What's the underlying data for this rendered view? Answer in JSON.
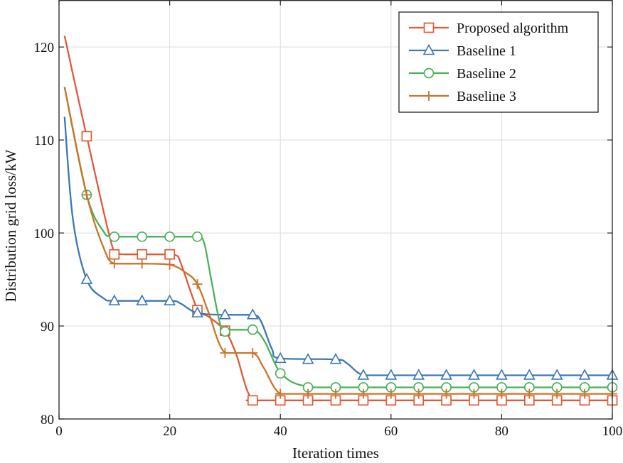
{
  "chart_data": {
    "type": "line",
    "xlabel": "Iteration times",
    "ylabel": "Distribution grid loss/kW",
    "xlim": [
      0,
      100
    ],
    "ylim": [
      80,
      125
    ],
    "xticks": [
      0,
      20,
      40,
      60,
      80,
      100
    ],
    "yticks": [
      80,
      90,
      100,
      110,
      120
    ],
    "grid": true,
    "legend_position": "top-right",
    "series": [
      {
        "name": "Proposed algorithm",
        "color": "#e05a38",
        "marker": "square",
        "curve": [
          [
            1,
            121.2
          ],
          [
            5,
            110.4
          ],
          [
            10,
            97.8
          ],
          [
            12,
            97.7
          ],
          [
            15,
            97.7
          ],
          [
            20,
            97.7
          ],
          [
            21.5,
            97.5
          ],
          [
            25,
            91.8
          ],
          [
            27,
            91.0
          ],
          [
            30,
            89.5
          ],
          [
            32,
            87.0
          ],
          [
            35,
            82.0
          ],
          [
            40,
            82.0
          ],
          [
            100,
            82.0
          ]
        ],
        "markers": [
          [
            5,
            110.4
          ],
          [
            10,
            97.7
          ],
          [
            15,
            97.7
          ],
          [
            20,
            97.7
          ],
          [
            25,
            91.7
          ],
          [
            30,
            89.5
          ],
          [
            35,
            82.0
          ],
          [
            40,
            82.0
          ],
          [
            45,
            82.0
          ],
          [
            50,
            82.0
          ],
          [
            55,
            82.0
          ],
          [
            60,
            82.0
          ],
          [
            65,
            82.0
          ],
          [
            70,
            82.0
          ],
          [
            75,
            82.0
          ],
          [
            80,
            82.0
          ],
          [
            85,
            82.0
          ],
          [
            90,
            82.0
          ],
          [
            95,
            82.0
          ],
          [
            100,
            82.0
          ]
        ]
      },
      {
        "name": "Baseline 1",
        "color": "#3a78b5",
        "marker": "triangle",
        "curve": [
          [
            1,
            112.5
          ],
          [
            2.5,
            101.5
          ],
          [
            5,
            95.0
          ],
          [
            8,
            93.0
          ],
          [
            10,
            92.7
          ],
          [
            20,
            92.7
          ],
          [
            22,
            92.4
          ],
          [
            25,
            91.4
          ],
          [
            30,
            91.2
          ],
          [
            35,
            91.2
          ],
          [
            36.5,
            90.5
          ],
          [
            38.5,
            87.5
          ],
          [
            40,
            86.5
          ],
          [
            50,
            86.4
          ],
          [
            52,
            86.0
          ],
          [
            55,
            84.7
          ],
          [
            60,
            84.7
          ],
          [
            100,
            84.7
          ]
        ],
        "markers": [
          [
            5,
            95.0
          ],
          [
            10,
            92.7
          ],
          [
            15,
            92.7
          ],
          [
            20,
            92.7
          ],
          [
            25,
            91.4
          ],
          [
            30,
            91.2
          ],
          [
            35,
            91.2
          ],
          [
            40,
            86.5
          ],
          [
            45,
            86.4
          ],
          [
            50,
            86.4
          ],
          [
            55,
            84.7
          ],
          [
            60,
            84.7
          ],
          [
            65,
            84.7
          ],
          [
            70,
            84.7
          ],
          [
            75,
            84.7
          ],
          [
            80,
            84.7
          ],
          [
            85,
            84.7
          ],
          [
            90,
            84.7
          ],
          [
            95,
            84.7
          ],
          [
            100,
            84.7
          ]
        ]
      },
      {
        "name": "Baseline 2",
        "color": "#4cb05a",
        "marker": "circle",
        "curve": [
          [
            1,
            115.7
          ],
          [
            5,
            104.1
          ],
          [
            8,
            100.2
          ],
          [
            10,
            99.6
          ],
          [
            20,
            99.6
          ],
          [
            25,
            99.6
          ],
          [
            26.2,
            99.0
          ],
          [
            27.5,
            95.0
          ],
          [
            29,
            90.5
          ],
          [
            30,
            89.6
          ],
          [
            35,
            89.6
          ],
          [
            37,
            88.5
          ],
          [
            39,
            86.0
          ],
          [
            40,
            85.0
          ],
          [
            42,
            84.0
          ],
          [
            45,
            83.5
          ],
          [
            50,
            83.4
          ],
          [
            100,
            83.4
          ]
        ],
        "markers": [
          [
            5,
            104.1
          ],
          [
            10,
            99.6
          ],
          [
            15,
            99.6
          ],
          [
            20,
            99.6
          ],
          [
            25,
            99.6
          ],
          [
            30,
            89.4
          ],
          [
            35,
            89.6
          ],
          [
            40,
            84.9
          ],
          [
            45,
            83.4
          ],
          [
            50,
            83.4
          ],
          [
            55,
            83.4
          ],
          [
            60,
            83.4
          ],
          [
            65,
            83.4
          ],
          [
            70,
            83.4
          ],
          [
            75,
            83.4
          ],
          [
            80,
            83.4
          ],
          [
            85,
            83.4
          ],
          [
            90,
            83.4
          ],
          [
            95,
            83.4
          ],
          [
            100,
            83.4
          ]
        ]
      },
      {
        "name": "Baseline 3",
        "color": "#c8752a",
        "marker": "plus",
        "curve": [
          [
            1,
            115.7
          ],
          [
            5,
            104.1
          ],
          [
            8,
            98.5
          ],
          [
            10,
            96.7
          ],
          [
            15,
            96.7
          ],
          [
            20,
            96.6
          ],
          [
            23,
            95.7
          ],
          [
            25,
            94.5
          ],
          [
            27,
            91.5
          ],
          [
            30,
            87.1
          ],
          [
            35,
            87.1
          ],
          [
            37,
            85.5
          ],
          [
            40,
            82.7
          ],
          [
            45,
            82.7
          ],
          [
            100,
            82.7
          ]
        ],
        "markers": [
          [
            5,
            104.1
          ],
          [
            10,
            96.7
          ],
          [
            15,
            96.7
          ],
          [
            20,
            96.6
          ],
          [
            25,
            94.5
          ],
          [
            30,
            87.1
          ],
          [
            35,
            87.1
          ],
          [
            40,
            82.7
          ],
          [
            45,
            82.7
          ],
          [
            50,
            82.7
          ],
          [
            55,
            82.7
          ],
          [
            60,
            82.7
          ],
          [
            65,
            82.7
          ],
          [
            70,
            82.7
          ],
          [
            75,
            82.7
          ],
          [
            80,
            82.7
          ],
          [
            85,
            82.7
          ],
          [
            90,
            82.7
          ],
          [
            95,
            82.7
          ],
          [
            100,
            82.7
          ]
        ]
      }
    ]
  }
}
